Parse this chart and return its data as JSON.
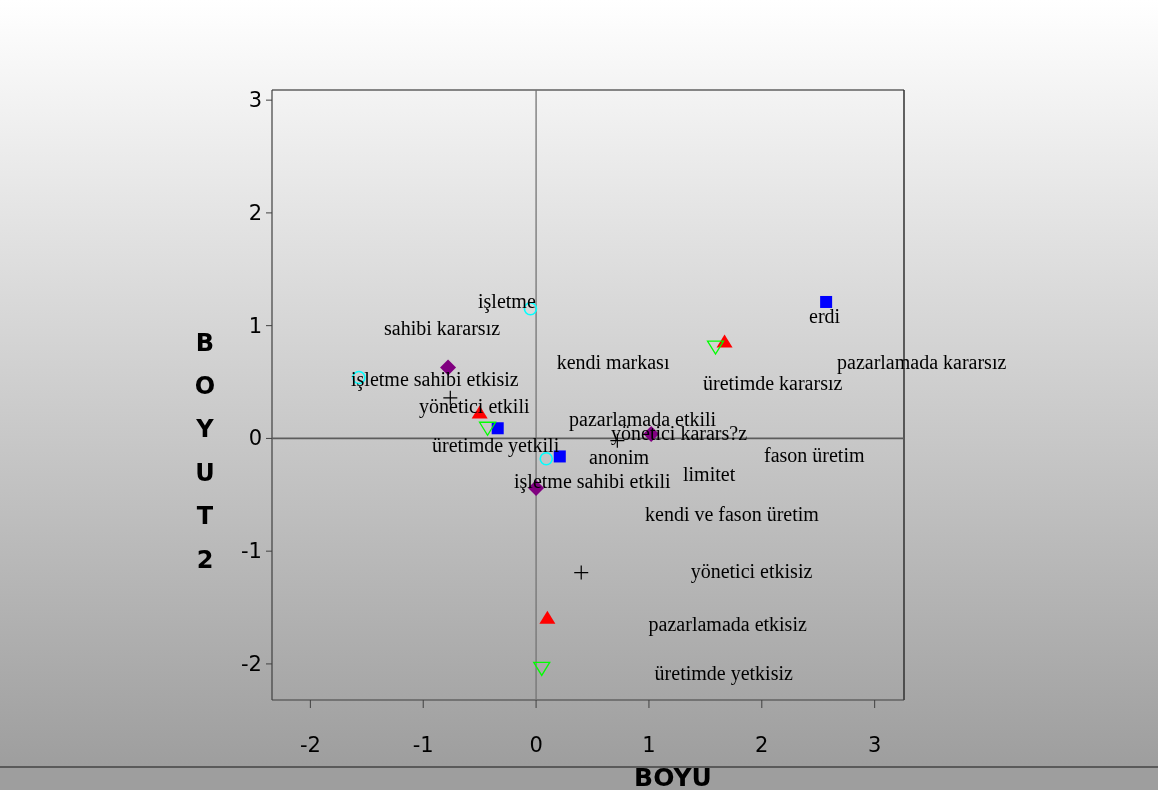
{
  "chart_data": {
    "type": "scatter",
    "xlabel": "BOYU",
    "ylabel": "BOYUT2",
    "xlim": [
      -2.34,
      3.26
    ],
    "ylim": [
      -2.32,
      3.09
    ],
    "xticks": [
      -2,
      -1,
      0,
      1,
      2,
      3
    ],
    "yticks": [
      -2,
      -1,
      0,
      1,
      2,
      3
    ],
    "series": [
      {
        "color": "#0000ff",
        "marker": "square",
        "x": [
          2.57,
          -0.34,
          0.21
        ],
        "values": [
          1.21,
          0.09,
          -0.16
        ]
      },
      {
        "color": "#ff0000",
        "marker": "triangle",
        "x": [
          1.67,
          -0.5,
          0.1
        ],
        "values": [
          0.86,
          0.23,
          -1.59
        ]
      },
      {
        "color": "#00ff00",
        "marker": "triangle-down",
        "x": [
          1.59,
          -0.43,
          0.05
        ],
        "values": [
          0.81,
          0.09,
          -2.04
        ]
      },
      {
        "color": "#800080",
        "marker": "diamond",
        "x": [
          -0.78,
          1.02,
          0.0
        ],
        "values": [
          0.63,
          0.04,
          -0.44
        ]
      },
      {
        "color": "#000000",
        "marker": "cross",
        "x": [
          -0.76,
          0.72,
          0.4
        ],
        "values": [
          0.36,
          -0.02,
          -1.19
        ]
      },
      {
        "color": "#00ffff",
        "marker": "circle",
        "x": [
          -1.57,
          -0.05,
          0.09
        ],
        "values": [
          0.54,
          1.15,
          -0.18
        ]
      }
    ],
    "ref_lines": [
      {
        "axis": "x",
        "value": 0,
        "color": "#747474"
      },
      {
        "axis": "y",
        "value": 0,
        "color": "#5c5c5c"
      }
    ],
    "annotations": [
      "işletme",
      "sahibi kararsız",
      "erdi",
      "kendi markası",
      "pazarlamada kararsız",
      "üretimde kararsız",
      "işletme sahibi etkisiz",
      "yönetici etkili",
      "pazarlamada etkili",
      "yönetici karars?z",
      "üretimde yetkili",
      "anonim",
      "fason üretim",
      "limitet",
      "işletme sahibi etkili",
      "kendi ve fason üretim",
      "yönetici etkisiz",
      "pazarlamada etkisiz",
      "üretimde yetkisiz"
    ]
  }
}
